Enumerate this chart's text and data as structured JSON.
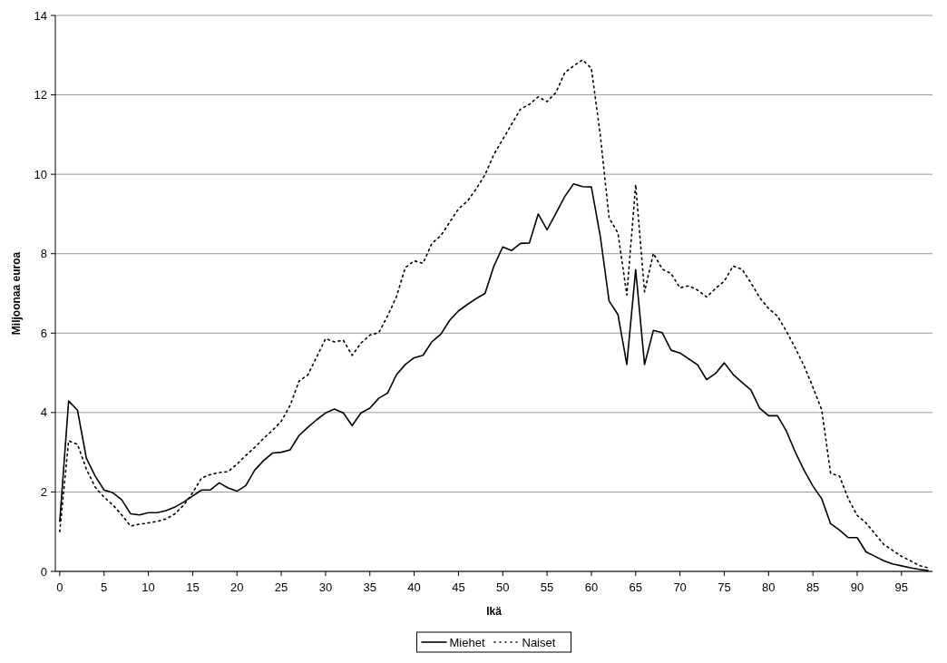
{
  "chart_data": {
    "type": "line",
    "xlabel": "Ikä",
    "ylabel": "Miljoonaa euroa",
    "x": [
      0,
      1,
      2,
      3,
      4,
      5,
      6,
      7,
      8,
      9,
      10,
      11,
      12,
      13,
      14,
      15,
      16,
      17,
      18,
      19,
      20,
      21,
      22,
      23,
      24,
      25,
      26,
      27,
      28,
      29,
      30,
      31,
      32,
      33,
      34,
      35,
      36,
      37,
      38,
      39,
      40,
      41,
      42,
      43,
      44,
      45,
      46,
      47,
      48,
      49,
      50,
      51,
      52,
      53,
      54,
      55,
      56,
      57,
      58,
      59,
      60,
      61,
      62,
      63,
      64,
      65,
      66,
      67,
      68,
      69,
      70,
      71,
      72,
      73,
      74,
      75,
      76,
      77,
      78,
      79,
      80,
      81,
      82,
      83,
      84,
      85,
      86,
      87,
      88,
      89,
      90,
      91,
      92,
      93,
      94,
      95,
      96,
      97,
      98
    ],
    "xlim": [
      -0.5,
      98.5
    ],
    "xticks": [
      0,
      5,
      10,
      15,
      20,
      25,
      30,
      35,
      40,
      45,
      50,
      55,
      60,
      65,
      70,
      75,
      80,
      85,
      90,
      95
    ],
    "ylim": [
      0,
      14
    ],
    "yticks": [
      0,
      2,
      4,
      6,
      8,
      10,
      12,
      14
    ],
    "grid": "y",
    "legend": "bottom",
    "marker": "none",
    "series": [
      {
        "name": "Miehet",
        "color": "#000000",
        "line_style": "solid",
        "values": [
          1.26,
          4.29,
          4.06,
          2.85,
          2.4,
          2.05,
          1.98,
          1.8,
          1.45,
          1.42,
          1.48,
          1.48,
          1.53,
          1.62,
          1.75,
          1.9,
          2.05,
          2.05,
          2.23,
          2.1,
          2.02,
          2.16,
          2.55,
          2.79,
          2.98,
          3.0,
          3.06,
          3.42,
          3.63,
          3.82,
          3.99,
          4.09,
          3.99,
          3.67,
          3.99,
          4.11,
          4.36,
          4.49,
          4.95,
          5.21,
          5.38,
          5.44,
          5.78,
          5.97,
          6.32,
          6.56,
          6.72,
          6.87,
          7.0,
          7.69,
          8.17,
          8.08,
          8.26,
          8.27,
          9.0,
          8.6,
          9.02,
          9.44,
          9.76,
          9.69,
          9.68,
          8.45,
          6.81,
          6.47,
          5.21,
          7.6,
          5.21,
          6.07,
          6.01,
          5.57,
          5.5,
          5.35,
          5.2,
          4.83,
          4.98,
          5.25,
          4.96,
          4.76,
          4.57,
          4.11,
          3.92,
          3.92,
          3.54,
          3.01,
          2.55,
          2.15,
          1.83,
          1.2,
          1.04,
          0.85,
          0.85,
          0.49,
          0.38,
          0.27,
          0.19,
          0.14,
          0.09,
          0.05,
          0.02
        ]
      },
      {
        "name": "Naiset",
        "color": "#000000",
        "line_style": "dotted",
        "values": [
          1.0,
          3.29,
          3.2,
          2.58,
          2.12,
          1.87,
          1.67,
          1.42,
          1.14,
          1.19,
          1.22,
          1.26,
          1.32,
          1.45,
          1.67,
          1.98,
          2.35,
          2.44,
          2.49,
          2.51,
          2.7,
          2.92,
          3.12,
          3.35,
          3.55,
          3.78,
          4.18,
          4.79,
          4.95,
          5.4,
          5.86,
          5.78,
          5.82,
          5.44,
          5.75,
          5.95,
          6.01,
          6.43,
          6.92,
          7.65,
          7.82,
          7.76,
          8.26,
          8.45,
          8.79,
          9.13,
          9.32,
          9.63,
          9.99,
          10.5,
          10.88,
          11.26,
          11.64,
          11.76,
          11.95,
          11.83,
          12.06,
          12.56,
          12.73,
          12.88,
          12.67,
          11.0,
          8.9,
          8.52,
          6.96,
          9.74,
          7.04,
          8.01,
          7.61,
          7.5,
          7.14,
          7.19,
          7.08,
          6.91,
          7.12,
          7.31,
          7.69,
          7.61,
          7.27,
          6.89,
          6.62,
          6.43,
          6.05,
          5.63,
          5.18,
          4.64,
          4.07,
          2.47,
          2.4,
          1.83,
          1.41,
          1.22,
          0.95,
          0.68,
          0.53,
          0.38,
          0.27,
          0.15,
          0.09
        ]
      }
    ]
  }
}
